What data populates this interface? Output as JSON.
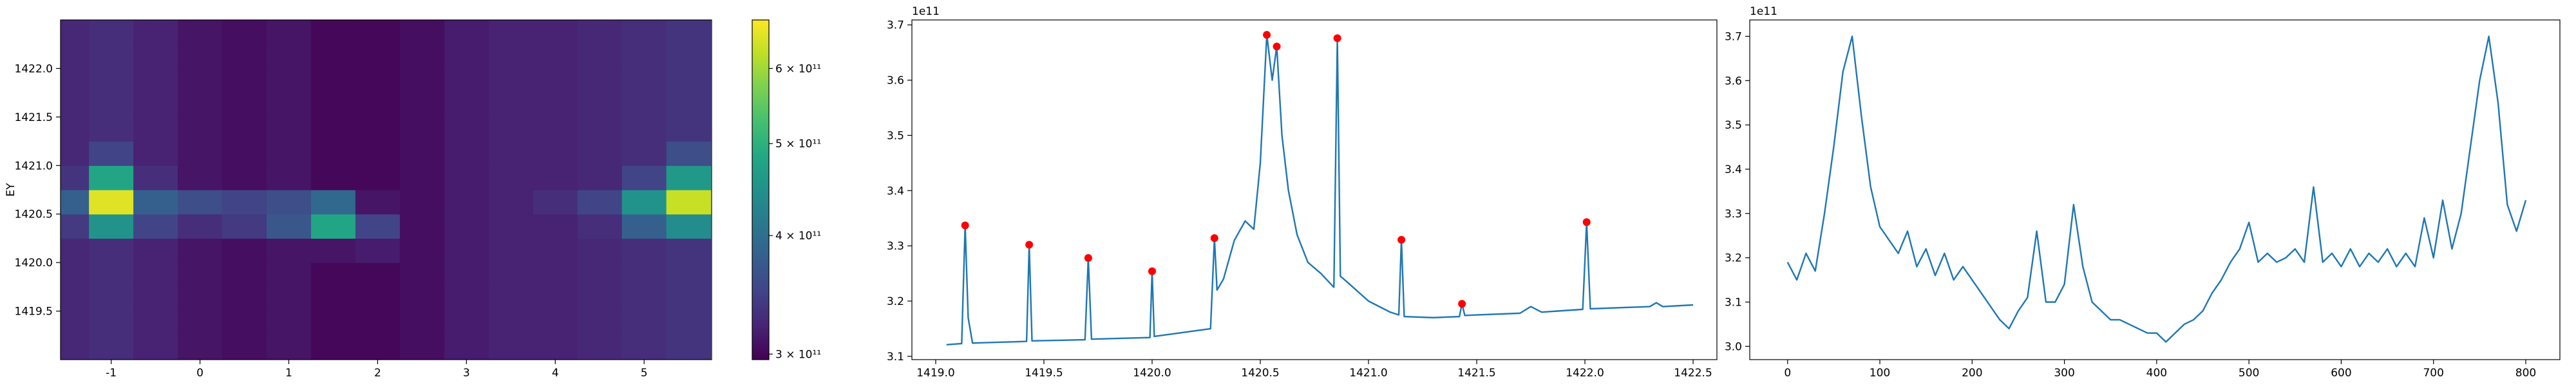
{
  "chart_data": [
    {
      "type": "heatmap",
      "ylabel": "EY",
      "colormap": "viridis",
      "x": [
        -1.5,
        -1,
        -0.5,
        0,
        0.5,
        1,
        1.5,
        2,
        2.5,
        3,
        3.5,
        4,
        4.5,
        5,
        5.5
      ],
      "y": [
        1419.125,
        1419.375,
        1419.625,
        1419.875,
        1420.125,
        1420.375,
        1420.625,
        1420.875,
        1421.125,
        1421.375,
        1421.625,
        1421.875,
        1422.125,
        1422.375
      ],
      "z": [
        [
          325000000000.0,
          330000000000.0,
          320000000000.0,
          310000000000.0,
          305000000000.0,
          310000000000.0,
          300000000000.0,
          300000000000.0,
          305000000000.0,
          315000000000.0,
          320000000000.0,
          320000000000.0,
          325000000000.0,
          330000000000.0,
          335000000000.0
        ],
        [
          325000000000.0,
          330000000000.0,
          320000000000.0,
          310000000000.0,
          305000000000.0,
          310000000000.0,
          300000000000.0,
          300000000000.0,
          305000000000.0,
          315000000000.0,
          320000000000.0,
          320000000000.0,
          325000000000.0,
          330000000000.0,
          335000000000.0
        ],
        [
          325000000000.0,
          330000000000.0,
          320000000000.0,
          310000000000.0,
          305000000000.0,
          310000000000.0,
          300000000000.0,
          300000000000.0,
          305000000000.0,
          315000000000.0,
          320000000000.0,
          320000000000.0,
          325000000000.0,
          330000000000.0,
          335000000000.0
        ],
        [
          325000000000.0,
          330000000000.0,
          320000000000.0,
          310000000000.0,
          305000000000.0,
          310000000000.0,
          300000000000.0,
          300000000000.0,
          305000000000.0,
          315000000000.0,
          320000000000.0,
          320000000000.0,
          325000000000.0,
          330000000000.0,
          335000000000.0
        ],
        [
          325000000000.0,
          330000000000.0,
          320000000000.0,
          310000000000.0,
          305000000000.0,
          310000000000.0,
          310000000000.0,
          315000000000.0,
          305000000000.0,
          315000000000.0,
          320000000000.0,
          320000000000.0,
          325000000000.0,
          330000000000.0,
          335000000000.0
        ],
        [
          340000000000.0,
          450000000000.0,
          350000000000.0,
          330000000000.0,
          340000000000.0,
          370000000000.0,
          480000000000.0,
          350000000000.0,
          305000000000.0,
          315000000000.0,
          320000000000.0,
          320000000000.0,
          330000000000.0,
          380000000000.0,
          440000000000.0
        ],
        [
          380000000000.0,
          650000000000.0,
          380000000000.0,
          360000000000.0,
          350000000000.0,
          360000000000.0,
          390000000000.0,
          310000000000.0,
          305000000000.0,
          315000000000.0,
          320000000000.0,
          330000000000.0,
          350000000000.0,
          450000000000.0,
          630000000000.0
        ],
        [
          335000000000.0,
          480000000000.0,
          330000000000.0,
          310000000000.0,
          305000000000.0,
          310000000000.0,
          300000000000.0,
          300000000000.0,
          305000000000.0,
          315000000000.0,
          320000000000.0,
          320000000000.0,
          325000000000.0,
          350000000000.0,
          460000000000.0
        ],
        [
          325000000000.0,
          350000000000.0,
          320000000000.0,
          310000000000.0,
          305000000000.0,
          310000000000.0,
          300000000000.0,
          300000000000.0,
          305000000000.0,
          315000000000.0,
          320000000000.0,
          320000000000.0,
          325000000000.0,
          330000000000.0,
          360000000000.0
        ],
        [
          325000000000.0,
          330000000000.0,
          320000000000.0,
          310000000000.0,
          305000000000.0,
          310000000000.0,
          300000000000.0,
          300000000000.0,
          305000000000.0,
          315000000000.0,
          320000000000.0,
          320000000000.0,
          325000000000.0,
          330000000000.0,
          335000000000.0
        ],
        [
          325000000000.0,
          330000000000.0,
          320000000000.0,
          310000000000.0,
          305000000000.0,
          310000000000.0,
          300000000000.0,
          300000000000.0,
          305000000000.0,
          315000000000.0,
          320000000000.0,
          320000000000.0,
          325000000000.0,
          330000000000.0,
          335000000000.0
        ],
        [
          325000000000.0,
          330000000000.0,
          320000000000.0,
          310000000000.0,
          305000000000.0,
          310000000000.0,
          300000000000.0,
          300000000000.0,
          305000000000.0,
          315000000000.0,
          320000000000.0,
          320000000000.0,
          325000000000.0,
          330000000000.0,
          335000000000.0
        ],
        [
          325000000000.0,
          330000000000.0,
          320000000000.0,
          310000000000.0,
          305000000000.0,
          310000000000.0,
          300000000000.0,
          300000000000.0,
          305000000000.0,
          315000000000.0,
          320000000000.0,
          320000000000.0,
          325000000000.0,
          330000000000.0,
          335000000000.0
        ],
        [
          325000000000.0,
          330000000000.0,
          320000000000.0,
          310000000000.0,
          305000000000.0,
          310000000000.0,
          300000000000.0,
          300000000000.0,
          305000000000.0,
          315000000000.0,
          320000000000.0,
          320000000000.0,
          325000000000.0,
          330000000000.0,
          335000000000.0
        ]
      ],
      "xlim": [
        -1.57,
        5.76
      ],
      "ylim": [
        1419.0,
        1422.5
      ],
      "xticks": [
        -1,
        0,
        1,
        2,
        3,
        4,
        5
      ],
      "yticks": [
        1419.5,
        {
          "value": 1420,
          "label": "1420.0"
        },
        1420.5,
        {
          "value": 1421,
          "label": "1421.0"
        },
        1421.5,
        {
          "value": 1422,
          "label": "1422.0"
        }
      ],
      "colorbar": {
        "scale": "log",
        "lim": [
          296000000000.0,
          675000000000.0
        ],
        "ticks": [
          {
            "value": 300000000000.0,
            "label": "3 × 10¹¹"
          },
          {
            "value": 400000000000.0,
            "label": "4 × 10¹¹"
          },
          {
            "value": 500000000000.0,
            "label": "5 × 10¹¹"
          },
          {
            "value": 600000000000.0,
            "label": "6 × 10¹¹"
          }
        ]
      }
    },
    {
      "type": "line",
      "y_offset_label": "1e11",
      "x": [
        1419.05,
        1419.12,
        1419.136,
        1419.15,
        1419.17,
        1419.42,
        1419.432,
        1419.445,
        1419.69,
        1419.705,
        1419.72,
        1419.99,
        1420.0,
        1420.01,
        1420.27,
        1420.288,
        1420.3,
        1420.33,
        1420.38,
        1420.43,
        1420.47,
        1420.5,
        1420.53,
        1420.555,
        1420.576,
        1420.6,
        1420.63,
        1420.67,
        1420.72,
        1420.78,
        1420.84,
        1420.856,
        1420.87,
        1420.9,
        1421.0,
        1421.1,
        1421.14,
        1421.152,
        1421.165,
        1421.3,
        1421.42,
        1421.432,
        1421.445,
        1421.7,
        1421.75,
        1421.8,
        1421.99,
        1422.008,
        1422.025,
        1422.3,
        1422.33,
        1422.36,
        1422.5
      ],
      "series": [
        {
          "color": "#1f77b4",
          "values": [
            3.121,
            3.123,
            3.337,
            3.17,
            3.124,
            3.127,
            3.302,
            3.128,
            3.13,
            3.278,
            3.131,
            3.134,
            3.254,
            3.136,
            3.15,
            3.314,
            3.22,
            3.24,
            3.31,
            3.345,
            3.33,
            3.45,
            3.682,
            3.6,
            3.661,
            3.5,
            3.4,
            3.32,
            3.27,
            3.25,
            3.225,
            3.676,
            3.245,
            3.235,
            3.2,
            3.18,
            3.175,
            3.311,
            3.172,
            3.17,
            3.172,
            3.195,
            3.174,
            3.178,
            3.19,
            3.18,
            3.185,
            3.343,
            3.186,
            3.19,
            3.197,
            3.19,
            3.193
          ]
        }
      ],
      "markers": {
        "color": "#ff0000",
        "x": [
          1419.136,
          1419.432,
          1419.705,
          1420.0,
          1420.288,
          1420.53,
          1420.576,
          1420.856,
          1421.152,
          1421.432,
          1422.008
        ],
        "values": [
          3.337,
          3.302,
          3.278,
          3.254,
          3.314,
          3.682,
          3.661,
          3.676,
          3.311,
          3.195,
          3.343
        ]
      },
      "xlim": [
        1418.89,
        1422.61
      ],
      "ylim": [
        3.094,
        3.709
      ],
      "xticks": [
        {
          "value": 1419,
          "label": "1419.0"
        },
        1419.5,
        {
          "value": 1420,
          "label": "1420.0"
        },
        1420.5,
        {
          "value": 1421,
          "label": "1421.0"
        },
        1421.5,
        {
          "value": 1422,
          "label": "1422.0"
        },
        1422.5
      ],
      "yticks": [
        3.1,
        3.2,
        3.3,
        3.4,
        3.5,
        3.6,
        3.7
      ]
    },
    {
      "type": "line",
      "y_offset_label": "1e11",
      "x": [
        0,
        10,
        20,
        30,
        40,
        50,
        60,
        70,
        80,
        90,
        100,
        110,
        120,
        130,
        140,
        150,
        160,
        170,
        180,
        190,
        200,
        210,
        220,
        230,
        240,
        250,
        260,
        270,
        280,
        290,
        300,
        310,
        320,
        330,
        340,
        350,
        360,
        370,
        380,
        390,
        400,
        410,
        420,
        430,
        440,
        450,
        460,
        470,
        480,
        490,
        500,
        510,
        520,
        530,
        540,
        550,
        560,
        570,
        580,
        590,
        600,
        610,
        620,
        630,
        640,
        650,
        660,
        670,
        680,
        690,
        700,
        710,
        720,
        730,
        740,
        750,
        760,
        770,
        780,
        790,
        800
      ],
      "series": [
        {
          "color": "#1f77b4",
          "values": [
            3.19,
            3.15,
            3.21,
            3.17,
            3.3,
            3.45,
            3.62,
            3.7,
            3.52,
            3.36,
            3.27,
            3.24,
            3.21,
            3.26,
            3.18,
            3.22,
            3.16,
            3.21,
            3.15,
            3.18,
            3.15,
            3.12,
            3.09,
            3.06,
            3.04,
            3.08,
            3.11,
            3.26,
            3.1,
            3.1,
            3.14,
            3.32,
            3.18,
            3.1,
            3.08,
            3.06,
            3.06,
            3.05,
            3.04,
            3.03,
            3.03,
            3.01,
            3.03,
            3.05,
            3.06,
            3.08,
            3.12,
            3.15,
            3.19,
            3.22,
            3.28,
            3.19,
            3.21,
            3.19,
            3.2,
            3.22,
            3.19,
            3.36,
            3.19,
            3.21,
            3.18,
            3.22,
            3.18,
            3.21,
            3.19,
            3.22,
            3.18,
            3.21,
            3.18,
            3.29,
            3.2,
            3.33,
            3.22,
            3.3,
            3.45,
            3.6,
            3.7,
            3.55,
            3.32,
            3.26,
            3.33
          ]
        }
      ],
      "xlim": [
        -41,
        837
      ],
      "ylim": [
        2.97,
        3.737
      ],
      "xticks": [
        0,
        100,
        200,
        300,
        400,
        500,
        600,
        700,
        800
      ],
      "yticks": [
        {
          "value": 3,
          "label": "3.0"
        },
        3.1,
        3.2,
        3.3,
        3.4,
        3.5,
        3.6,
        3.7
      ]
    }
  ]
}
